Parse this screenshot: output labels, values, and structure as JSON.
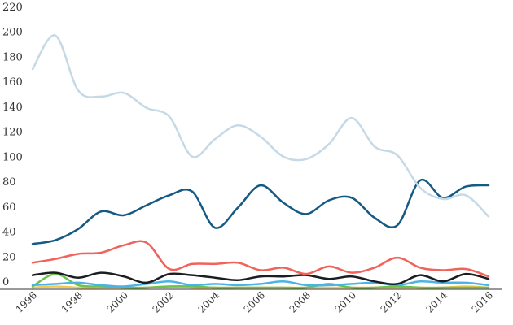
{
  "chart_data": {
    "type": "line",
    "title": "",
    "xlabel": "",
    "ylabel": "",
    "x": [
      1996,
      1997,
      1998,
      1999,
      2000,
      2001,
      2002,
      2003,
      2004,
      2005,
      2006,
      2007,
      2008,
      2009,
      2010,
      2011,
      2012,
      2013,
      2014,
      2015,
      2016
    ],
    "xlim": [
      1996,
      2016
    ],
    "ylim": [
      0,
      220
    ],
    "y_ticks": [
      "0",
      "20",
      "40",
      "60",
      "80",
      "100",
      "120",
      "140",
      "160",
      "180",
      "200",
      "220"
    ],
    "x_ticks": [
      "1996",
      "1998",
      "2000",
      "2002",
      "2004",
      "2006",
      "2008",
      "2010",
      "2012",
      "2014",
      "2016"
    ],
    "x_tick_values": [
      1996,
      1998,
      2000,
      2002,
      2004,
      2006,
      2008,
      2010,
      2012,
      2014,
      2016
    ],
    "y_tick_values": [
      0,
      20,
      40,
      60,
      80,
      100,
      120,
      140,
      160,
      180,
      200,
      220
    ],
    "grid": false,
    "legend": "none",
    "series": [
      {
        "color": "#c5d9e6",
        "values": [
          175,
          202,
          158,
          153,
          156,
          144,
          137,
          105,
          119,
          130,
          121,
          105,
          103,
          115,
          136,
          113,
          106,
          80,
          71,
          74,
          57
        ]
      },
      {
        "color": "#155a82",
        "values": [
          35,
          38,
          47,
          61,
          58,
          66,
          74,
          77,
          48,
          64,
          82,
          68,
          59,
          70,
          72,
          56,
          50,
          86,
          72,
          81,
          82
        ]
      },
      {
        "color": "#f0625a",
        "values": [
          20,
          23,
          27,
          28,
          34,
          36,
          15,
          19,
          19,
          20,
          14,
          16,
          11,
          17,
          12,
          16,
          24,
          16,
          14,
          15,
          9
        ]
      },
      {
        "color": "#1a1e22",
        "values": [
          10,
          12,
          8,
          12,
          9,
          4,
          11,
          10,
          8,
          6,
          9,
          9,
          10,
          7,
          9,
          5,
          3,
          10,
          5,
          11,
          7
        ]
      },
      {
        "color": "#4bb3e6",
        "values": [
          2,
          3,
          4,
          2,
          1,
          3,
          5,
          2,
          3,
          2,
          3,
          5,
          2,
          2,
          3,
          4,
          2,
          5,
          4,
          4,
          2
        ]
      },
      {
        "color": "#6cc24a",
        "values": [
          1,
          11,
          2,
          1,
          0,
          0,
          1,
          1,
          0,
          0,
          0,
          0,
          0,
          3,
          0,
          0,
          1,
          0,
          0,
          0,
          0
        ]
      },
      {
        "color": "#f2c94c",
        "values": [
          0,
          1,
          0,
          0,
          0,
          0,
          1,
          0,
          0,
          0,
          0,
          0,
          0,
          0,
          0,
          0,
          0,
          0,
          0,
          1,
          0
        ]
      }
    ]
  }
}
